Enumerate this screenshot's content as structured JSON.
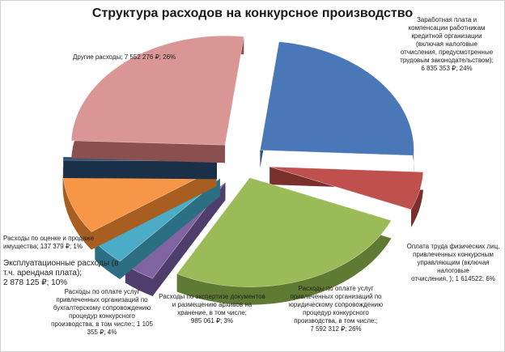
{
  "chart_data": {
    "type": "pie",
    "title": "Структура расходов на конкурсное производство",
    "slices": [
      {
        "id": "salary",
        "value": 6835353,
        "percent": 24,
        "color": "#4a77b8",
        "side": "#2f4f7f",
        "label": "Заработная плата и компенсации работникам кредитной организации (включая налоговые отчисления, предусмотренные трудовым законодательством); 6 835 353 ₽; 24%"
      },
      {
        "id": "individuals",
        "value": 1614522,
        "percent": 6,
        "color": "#c0504d",
        "side": "#7a2f2d",
        "label": "Оплата труда физических лиц, привлеченных конкурсным управляющим (включая налоговые отчисления, ); 1 614522; 6%"
      },
      {
        "id": "legal",
        "value": 7592312,
        "percent": 26,
        "color": "#9bbb59",
        "side": "#5f7a32",
        "label": "Расходы по оплате услуг привлеченных организаций по юридическому сопровождению процедур конкурсного производства, в том числе:; 7 592 312 ₽; 26%"
      },
      {
        "id": "expertise",
        "value": 985061,
        "percent": 3,
        "color": "#8064a2",
        "side": "#4f3d6b",
        "label": "Расходы по экспертизе документов и размещению архивов на хранение, в том числе; 985 061 ₽; 3%"
      },
      {
        "id": "accounting",
        "value": 1105355,
        "percent": 4,
        "color": "#4aacc6",
        "side": "#2c6f82",
        "label": "Расходы по оплате услуг привлеченных организаций по бухгалтерскому сопровождению процедур конкурсного производства, в том числе:; 1 105 355 ₽; 4%"
      },
      {
        "id": "operating",
        "value": 2878125,
        "percent": 10,
        "color": "#f79646",
        "side": "#a85e20",
        "label": "Эксплуатационные расходы (в т.ч. арендная плата); 2 878 125 ₽; 10%"
      },
      {
        "id": "valuation",
        "value": 137379,
        "percent": 1,
        "color": "#2c4d75",
        "side": "#1a2f48",
        "label": "Расходы по оценке и продаже имущества; 137 379 ₽; 1%"
      },
      {
        "id": "other",
        "value": 7552276,
        "percent": 26,
        "color": "#d99694",
        "side": "#8a5050",
        "label": "Другие расходы; 7 552 276 ₽; 26%"
      }
    ]
  },
  "labels": {
    "salary": [
      "Заработная плата и",
      "компенсации работникам",
      "кредитной организации",
      "(включая налоговые",
      "отчисления, предусмотренные",
      "трудовым законодательством);",
      "6 835 353 ₽; 24%"
    ],
    "individuals": [
      "Оплата труда физических лиц,",
      "привлеченных конкурсным",
      "управляющим (включая налоговые",
      "отчисления, ); 1 614522; 6%"
    ],
    "legal": [
      "Расходы по оплате услуг",
      "привлеченных организаций по",
      "юридическому сопровождению",
      "процедур конкурсного",
      "производства, в том числе:;",
      "7 592 312 ₽; 26%"
    ],
    "expertise": [
      "Расходы по экспертизе документов",
      "и размещению архивов на",
      "хранение, в том числе;",
      "985 061 ₽; 3%"
    ],
    "accounting": [
      "Расходы по оплате услуг",
      "привлеченных организаций по",
      "бухгалтерскому сопровождению",
      "процедур конкурсного",
      "производства, в том числе:; 1 105",
      "355 ₽; 4%"
    ],
    "operating": [
      "Эксплуатационные расходы (в",
      "т.ч. арендная плата);",
      "2 878 125 ₽; 10%"
    ],
    "valuation": [
      "Расходы по оценке и продаже",
      "имущества; 137 379 ₽; 1%"
    ],
    "other": [
      "Другие расходы; 7 552 276 ₽; 26%"
    ]
  }
}
